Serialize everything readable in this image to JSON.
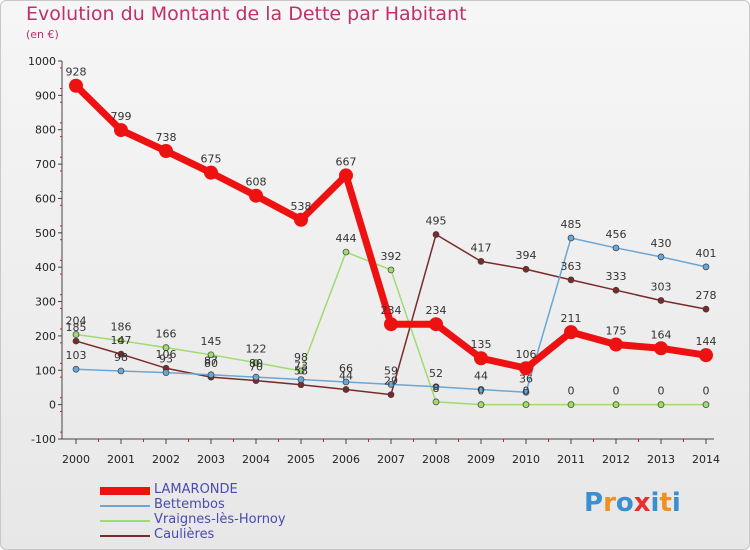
{
  "title": "Evolution du Montant de la Dette par Habitant",
  "unit": "(en €)",
  "brand": {
    "letters": [
      "P",
      "r",
      "o",
      "x",
      "i",
      "t",
      "i"
    ],
    "colors": [
      "#3a8fd0",
      "#f09020",
      "#3a8fd0",
      "#e53030",
      "#3a8fd0",
      "#f09020",
      "#3a8fd0"
    ]
  },
  "chart_data": {
    "type": "line",
    "x": [
      2000,
      2001,
      2002,
      2003,
      2004,
      2005,
      2006,
      2007,
      2008,
      2009,
      2010,
      2011,
      2012,
      2013,
      2014
    ],
    "ylim": [
      -100,
      1000
    ],
    "yticks": [
      -100,
      0,
      100,
      200,
      300,
      400,
      500,
      600,
      700,
      800,
      900,
      1000
    ],
    "grid": false,
    "legend_position": "bottom-left",
    "series": [
      {
        "name": "LAMARONDE",
        "color": "#ee1111",
        "values": [
          928,
          799,
          738,
          675,
          608,
          538,
          667,
          234,
          234,
          135,
          106,
          211,
          175,
          164,
          144
        ]
      },
      {
        "name": "Bettembos",
        "color": "#6aa6d6",
        "values": [
          103,
          98,
          93,
          87,
          80,
          73,
          66,
          59,
          52,
          44,
          36,
          485,
          456,
          430,
          401
        ]
      },
      {
        "name": "Vraignes-lès-Hornoy",
        "color": "#9fdb70",
        "values": [
          204,
          186,
          166,
          145,
          122,
          98,
          444,
          392,
          8,
          0,
          0,
          0,
          0,
          0,
          0
        ]
      },
      {
        "name": "Caulières",
        "color": "#7a2a2a",
        "values": [
          185,
          147,
          106,
          80,
          70,
          58,
          44,
          29,
          495,
          417,
          394,
          363,
          333,
          303,
          278
        ]
      }
    ],
    "data_labels": [
      {
        "series": 0,
        "labels": [
          "928",
          "799",
          "738",
          "675",
          "608",
          "538",
          "667",
          "234",
          "234",
          "135",
          "106",
          "211",
          "175",
          "164",
          "144"
        ]
      },
      {
        "series": 1,
        "labels": [
          "103",
          "98",
          "93",
          "87",
          "80",
          "73",
          "66",
          "59",
          "52",
          "44",
          "36",
          "485",
          "456",
          "430",
          "401"
        ]
      },
      {
        "series": 2,
        "labels": [
          "204",
          "186",
          "166",
          "145",
          "122",
          "98",
          "444",
          "392",
          "8",
          "0",
          "0",
          "0",
          "0",
          "0",
          "0"
        ]
      },
      {
        "series": 3,
        "labels": [
          "185",
          "147",
          "106",
          "80",
          "70",
          "58",
          "44",
          "29",
          "495",
          "417",
          "394",
          "363",
          "333",
          "303",
          "278"
        ]
      }
    ]
  }
}
